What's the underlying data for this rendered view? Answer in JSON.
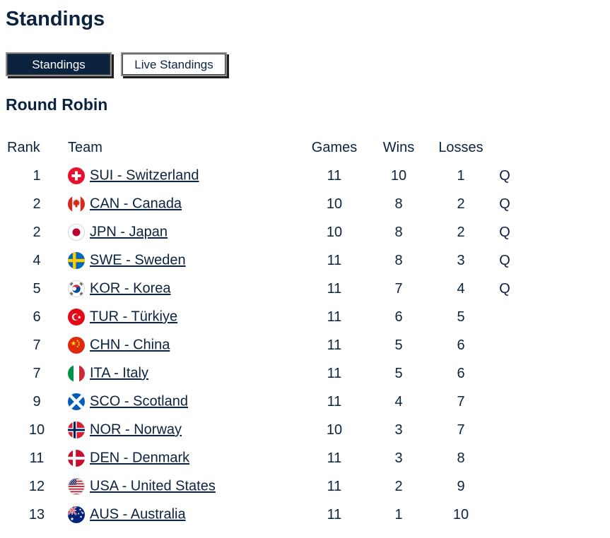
{
  "page": {
    "title": "Standings"
  },
  "tabs": [
    {
      "label": "Standings",
      "active": true
    },
    {
      "label": "Live Standings",
      "active": false
    }
  ],
  "section": {
    "title": "Round Robin"
  },
  "table": {
    "headers": {
      "rank": "Rank",
      "team": "Team",
      "games": "Games",
      "wins": "Wins",
      "losses": "Losses",
      "qualified": ""
    },
    "rows": [
      {
        "rank": "1",
        "team": "SUI - Switzerland",
        "flag": "sui",
        "flag_icon": "flag-sui-icon",
        "games": "11",
        "wins": "10",
        "losses": "1",
        "qualified": "Q"
      },
      {
        "rank": "2",
        "team": "CAN - Canada",
        "flag": "can",
        "flag_icon": "flag-can-icon",
        "games": "10",
        "wins": "8",
        "losses": "2",
        "qualified": "Q"
      },
      {
        "rank": "2",
        "team": "JPN - Japan",
        "flag": "jpn",
        "flag_icon": "flag-jpn-icon",
        "games": "10",
        "wins": "8",
        "losses": "2",
        "qualified": "Q"
      },
      {
        "rank": "4",
        "team": "SWE - Sweden",
        "flag": "swe",
        "flag_icon": "flag-swe-icon",
        "games": "11",
        "wins": "8",
        "losses": "3",
        "qualified": "Q"
      },
      {
        "rank": "5",
        "team": "KOR - Korea",
        "flag": "kor",
        "flag_icon": "flag-kor-icon",
        "games": "11",
        "wins": "7",
        "losses": "4",
        "qualified": "Q"
      },
      {
        "rank": "6",
        "team": "TUR - Türkiye",
        "flag": "tur",
        "flag_icon": "flag-tur-icon",
        "games": "11",
        "wins": "6",
        "losses": "5",
        "qualified": ""
      },
      {
        "rank": "7",
        "team": "CHN - China",
        "flag": "chn",
        "flag_icon": "flag-chn-icon",
        "games": "11",
        "wins": "5",
        "losses": "6",
        "qualified": ""
      },
      {
        "rank": "7",
        "team": "ITA - Italy",
        "flag": "ita",
        "flag_icon": "flag-ita-icon",
        "games": "11",
        "wins": "5",
        "losses": "6",
        "qualified": ""
      },
      {
        "rank": "9",
        "team": "SCO - Scotland",
        "flag": "sco",
        "flag_icon": "flag-sco-icon",
        "games": "11",
        "wins": "4",
        "losses": "7",
        "qualified": ""
      },
      {
        "rank": "10",
        "team": "NOR - Norway",
        "flag": "nor",
        "flag_icon": "flag-nor-icon",
        "games": "10",
        "wins": "3",
        "losses": "7",
        "qualified": ""
      },
      {
        "rank": "11",
        "team": "DEN - Denmark",
        "flag": "den",
        "flag_icon": "flag-den-icon",
        "games": "11",
        "wins": "3",
        "losses": "8",
        "qualified": ""
      },
      {
        "rank": "12",
        "team": "USA - United States",
        "flag": "usa",
        "flag_icon": "flag-usa-icon",
        "games": "11",
        "wins": "2",
        "losses": "9",
        "qualified": ""
      },
      {
        "rank": "13",
        "team": "AUS - Australia",
        "flag": "aus",
        "flag_icon": "flag-aus-icon",
        "games": "11",
        "wins": "1",
        "losses": "10",
        "qualified": ""
      }
    ]
  },
  "colors": {
    "navy": "#0c2340",
    "tab_active_bg": "#0c2340",
    "tab_active_text": "#ffffff",
    "page_bg": "#ffffff"
  }
}
